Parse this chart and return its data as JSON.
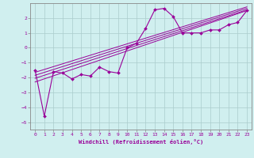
{
  "xlabel": "Windchill (Refroidissement éolien,°C)",
  "bg_color": "#d0efef",
  "grid_color": "#aacccc",
  "line_color": "#990099",
  "spine_color": "#888888",
  "xlim": [
    -0.5,
    23.5
  ],
  "ylim": [
    -5.5,
    3.0
  ],
  "yticks": [
    -5,
    -4,
    -3,
    -2,
    -1,
    0,
    1,
    2
  ],
  "xticks": [
    0,
    1,
    2,
    3,
    4,
    5,
    6,
    7,
    8,
    9,
    10,
    11,
    12,
    13,
    14,
    15,
    16,
    17,
    18,
    19,
    20,
    21,
    22,
    23
  ],
  "data_x": [
    0,
    1,
    2,
    3,
    4,
    5,
    6,
    7,
    8,
    9,
    10,
    11,
    12,
    13,
    14,
    15,
    16,
    17,
    18,
    19,
    20,
    21,
    22,
    23
  ],
  "data_y": [
    -1.5,
    -4.6,
    -1.6,
    -1.7,
    -2.1,
    -1.8,
    -1.9,
    -1.3,
    -1.6,
    -1.7,
    0.0,
    0.3,
    1.3,
    2.55,
    2.65,
    2.1,
    1.0,
    1.0,
    1.0,
    1.2,
    1.2,
    1.55,
    1.7,
    2.5
  ],
  "reg_lines": [
    {
      "x0": 0,
      "y0": -2.3,
      "x1": 23,
      "y1": 2.5
    },
    {
      "x0": 0,
      "y0": -2.05,
      "x1": 23,
      "y1": 2.55
    },
    {
      "x0": 0,
      "y0": -1.85,
      "x1": 23,
      "y1": 2.65
    },
    {
      "x0": 0,
      "y0": -1.65,
      "x1": 23,
      "y1": 2.75
    }
  ]
}
